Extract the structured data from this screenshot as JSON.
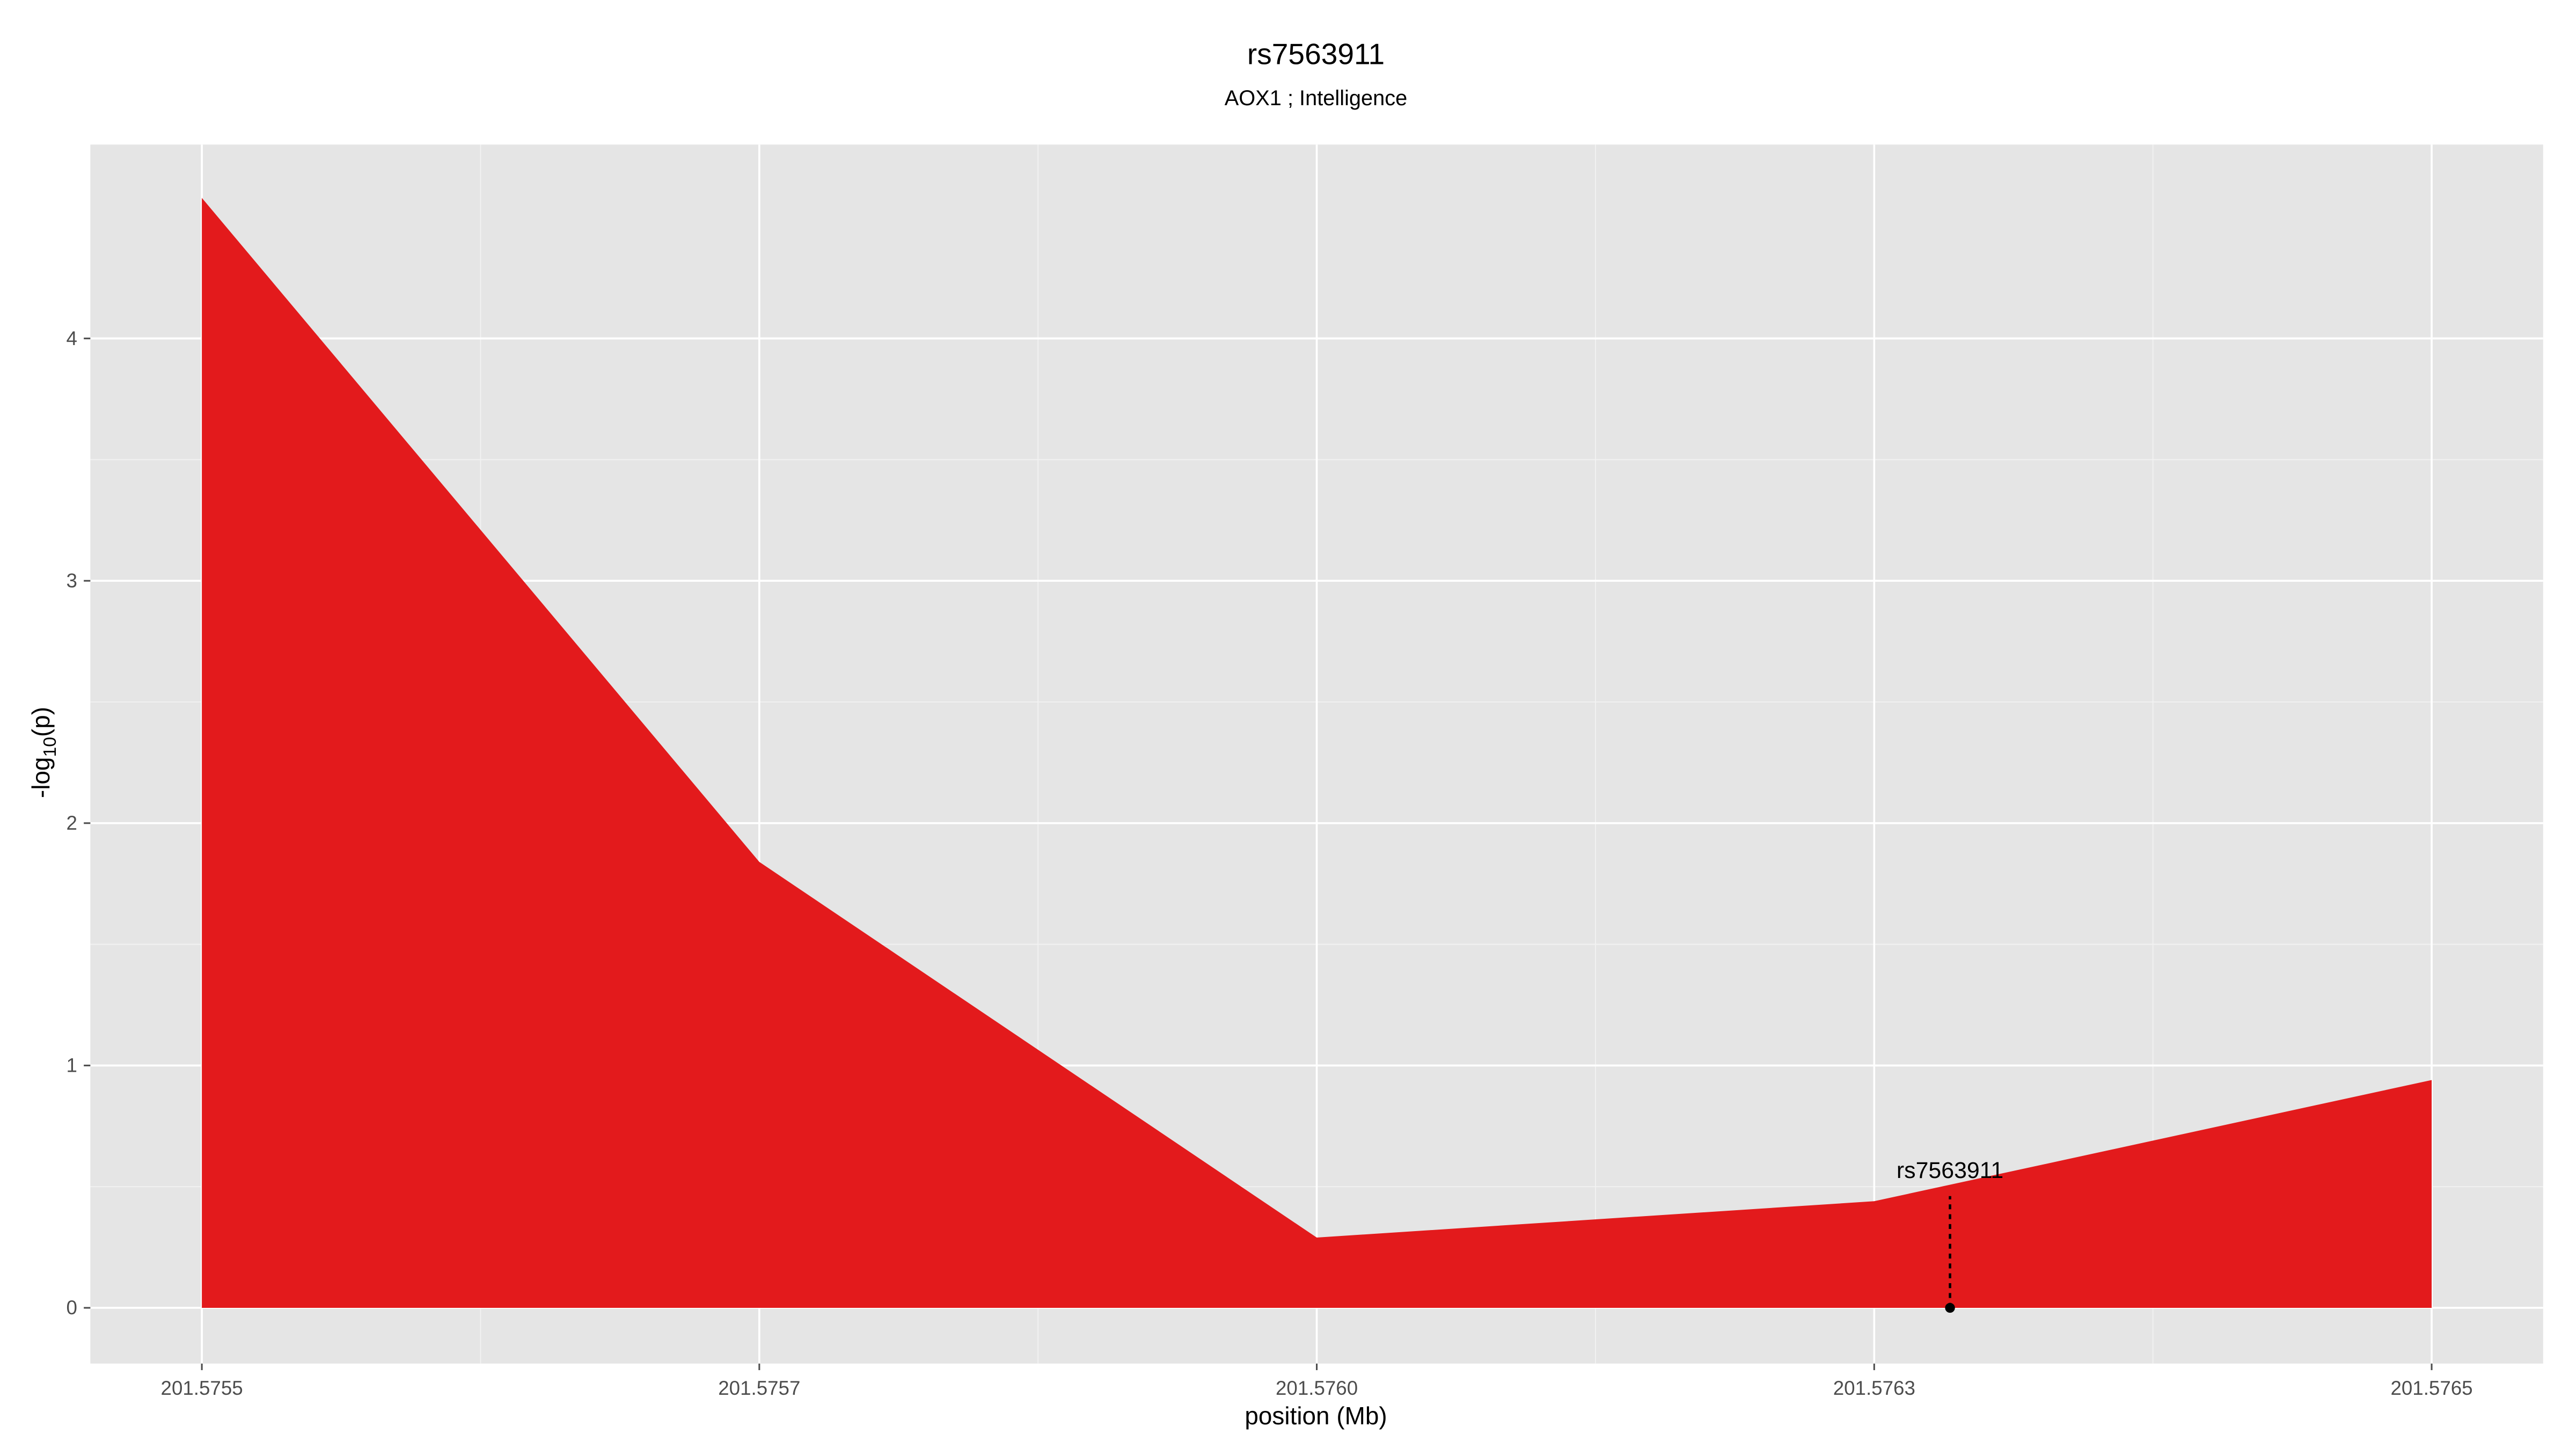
{
  "chart_data": {
    "type": "area",
    "title": "rs7563911",
    "subtitle": "AOX1 ; Intelligence",
    "x_label": "position (Mb)",
    "y_label": {
      "text": "-log",
      "subscript": "10",
      "suffix": "(p)"
    },
    "x": [
      201.5755,
      201.57575,
      201.576,
      201.57625,
      201.5765
    ],
    "values": [
      4.58,
      1.84,
      0.29,
      0.44,
      0.94
    ],
    "color": "#e31a1c",
    "xlim": [
      201.57545,
      201.57655
    ],
    "ylim": [
      -0.23,
      4.8
    ],
    "xticks": [
      {
        "value": 201.5755,
        "label": "201.5755"
      },
      {
        "value": 201.57575,
        "label": "201.5757"
      },
      {
        "value": 201.576,
        "label": "201.5760"
      },
      {
        "value": 201.57625,
        "label": "201.5763"
      },
      {
        "value": 201.5765,
        "label": "201.5765"
      }
    ],
    "yticks": [
      0,
      1,
      2,
      3,
      4
    ],
    "grid": true,
    "annotation": {
      "label": "rs7563911",
      "x": 201.576284,
      "y": 0
    }
  }
}
